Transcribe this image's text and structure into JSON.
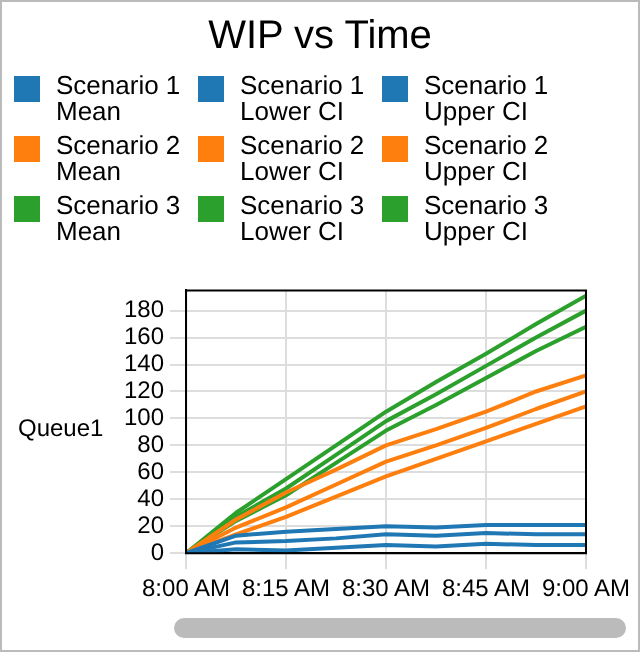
{
  "chart_data": {
    "type": "line",
    "title": "WIP vs Time",
    "ylabel": "Queue1",
    "x": [
      8,
      8.125,
      8.25,
      8.375,
      8.5,
      8.625,
      8.75,
      8.875,
      9
    ],
    "series": [
      {
        "name": "Scenario 1 Mean",
        "color": "#1f77b4",
        "values": [
          0,
          8,
          9,
          11,
          14,
          13,
          15,
          14,
          14
        ]
      },
      {
        "name": "Scenario 1 Lower CI",
        "color": "#1f77b4",
        "values": [
          0,
          3,
          2,
          4,
          6,
          5,
          7,
          6,
          6
        ]
      },
      {
        "name": "Scenario 1 Upper CI",
        "color": "#1f77b4",
        "values": [
          0,
          13,
          16,
          18,
          20,
          19,
          21,
          21,
          21
        ]
      },
      {
        "name": "Scenario 2 Mean",
        "color": "#ff7f0e",
        "values": [
          0,
          19,
          34,
          51,
          68,
          80,
          93,
          107,
          120
        ]
      },
      {
        "name": "Scenario 2 Lower CI",
        "color": "#ff7f0e",
        "values": [
          0,
          14,
          27,
          42,
          57,
          70,
          83,
          96,
          109
        ]
      },
      {
        "name": "Scenario 2 Upper CI",
        "color": "#ff7f0e",
        "values": [
          0,
          25,
          45,
          62,
          80,
          92,
          105,
          120,
          132
        ]
      },
      {
        "name": "Scenario 3 Mean",
        "color": "#2ca02c",
        "values": [
          0,
          27,
          48,
          73,
          98,
          118,
          139,
          160,
          180
        ]
      },
      {
        "name": "Scenario 3 Lower CI",
        "color": "#2ca02c",
        "values": [
          0,
          24,
          43,
          67,
          91,
          110,
          130,
          150,
          168
        ]
      },
      {
        "name": "Scenario 3 Upper CI",
        "color": "#2ca02c",
        "values": [
          0,
          30,
          55,
          80,
          105,
          127,
          148,
          170,
          191
        ]
      }
    ],
    "xlim": [
      8,
      9
    ],
    "xticks": [
      {
        "value": 8,
        "label": "8:00 AM"
      },
      {
        "value": 8.25,
        "label": "8:15 AM"
      },
      {
        "value": 8.5,
        "label": "8:30 AM"
      },
      {
        "value": 8.75,
        "label": "8:45 AM"
      },
      {
        "value": 9,
        "label": "9:00 AM"
      }
    ],
    "ylim": [
      0,
      195
    ],
    "yticks": [
      0,
      20,
      40,
      60,
      80,
      100,
      120,
      140,
      160,
      180
    ],
    "grid": true,
    "legend": "top",
    "marker": "none",
    "line_style": "solid"
  }
}
